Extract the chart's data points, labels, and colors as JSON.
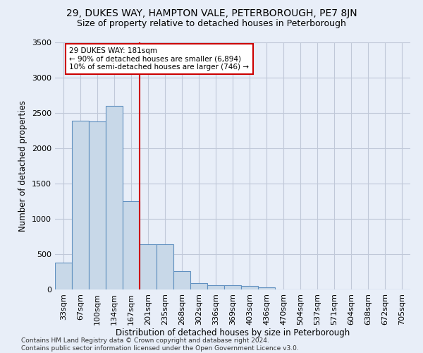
{
  "title1": "29, DUKES WAY, HAMPTON VALE, PETERBOROUGH, PE7 8JN",
  "title2": "Size of property relative to detached houses in Peterborough",
  "xlabel": "Distribution of detached houses by size in Peterborough",
  "ylabel": "Number of detached properties",
  "footnote": "Contains HM Land Registry data © Crown copyright and database right 2024.\nContains public sector information licensed under the Open Government Licence v3.0.",
  "categories": [
    "33sqm",
    "67sqm",
    "100sqm",
    "134sqm",
    "167sqm",
    "201sqm",
    "235sqm",
    "268sqm",
    "302sqm",
    "336sqm",
    "369sqm",
    "403sqm",
    "436sqm",
    "470sqm",
    "504sqm",
    "537sqm",
    "571sqm",
    "604sqm",
    "638sqm",
    "672sqm",
    "705sqm"
  ],
  "values": [
    380,
    2390,
    2380,
    2600,
    1250,
    640,
    640,
    260,
    90,
    65,
    60,
    55,
    35,
    0,
    0,
    0,
    0,
    0,
    0,
    0,
    0
  ],
  "bar_color": "#c8d8e8",
  "bar_edge_color": "#6090c0",
  "vline_color": "#cc0000",
  "annotation_text": "29 DUKES WAY: 181sqm\n← 90% of detached houses are smaller (6,894)\n10% of semi-detached houses are larger (746) →",
  "annotation_box_color": "white",
  "annotation_box_edge_color": "#cc0000",
  "ylim": [
    0,
    3500
  ],
  "yticks": [
    0,
    500,
    1000,
    1500,
    2000,
    2500,
    3000,
    3500
  ],
  "grid_color": "#c0c8d8",
  "bg_color": "#e8eef8",
  "title1_fontsize": 10,
  "title2_fontsize": 9,
  "axis_label_fontsize": 8.5,
  "tick_fontsize": 8,
  "footnote_fontsize": 6.5
}
